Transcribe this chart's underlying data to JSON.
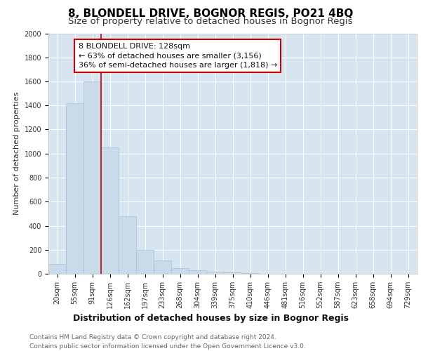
{
  "title": "8, BLONDELL DRIVE, BOGNOR REGIS, PO21 4BQ",
  "subtitle": "Size of property relative to detached houses in Bognor Regis",
  "xlabel": "Distribution of detached houses by size in Bognor Regis",
  "ylabel": "Number of detached properties",
  "categories": [
    "20sqm",
    "55sqm",
    "91sqm",
    "126sqm",
    "162sqm",
    "197sqm",
    "233sqm",
    "268sqm",
    "304sqm",
    "339sqm",
    "375sqm",
    "410sqm",
    "446sqm",
    "481sqm",
    "516sqm",
    "552sqm",
    "587sqm",
    "623sqm",
    "658sqm",
    "694sqm",
    "729sqm"
  ],
  "values": [
    80,
    1420,
    1600,
    1050,
    480,
    200,
    110,
    45,
    30,
    15,
    10,
    5,
    0,
    0,
    0,
    0,
    0,
    0,
    0,
    0,
    0
  ],
  "bar_color": "#c9daea",
  "bar_edgecolor": "#aabfce",
  "vline_x_index": 2.5,
  "vline_color": "#cc0000",
  "annotation_text": "8 BLONDELL DRIVE: 128sqm\n← 63% of detached houses are smaller (3,156)\n36% of semi-detached houses are larger (1,818) →",
  "annotation_box_facecolor": "#ffffff",
  "annotation_box_edgecolor": "#cc0000",
  "ylim": [
    0,
    2000
  ],
  "yticks": [
    0,
    200,
    400,
    600,
    800,
    1000,
    1200,
    1400,
    1600,
    1800,
    2000
  ],
  "plot_bg_color": "#d6e5f0",
  "grid_color": "#ffffff",
  "footer_line1": "Contains HM Land Registry data © Crown copyright and database right 2024.",
  "footer_line2": "Contains public sector information licensed under the Open Government Licence v3.0.",
  "title_fontsize": 11,
  "subtitle_fontsize": 9.5,
  "xlabel_fontsize": 9,
  "ylabel_fontsize": 8,
  "tick_fontsize": 7,
  "footer_fontsize": 6.5,
  "annotation_fontsize": 8
}
